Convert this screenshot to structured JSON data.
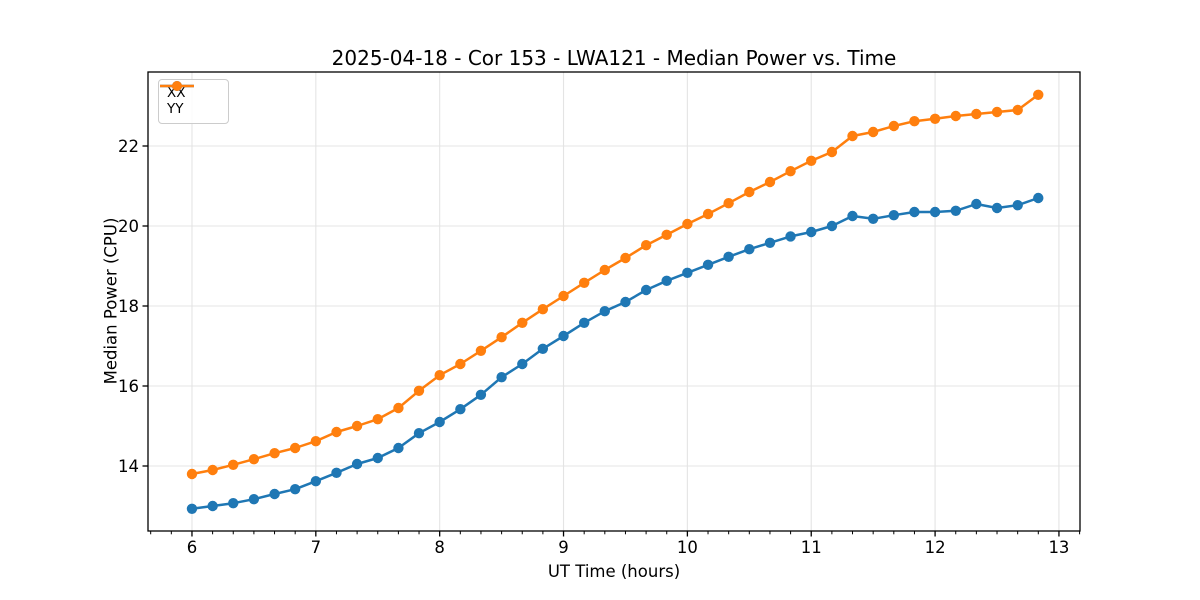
{
  "figure": {
    "background": "#ffffff",
    "spine_color": "#000000",
    "text_color": "#000000"
  },
  "chart_data": {
    "type": "line",
    "title": "2025-04-18 - Cor 153 - LWA121 - Median Power vs. Time",
    "xlabel": "UT Time (hours)",
    "ylabel": "Median Power (CPU)",
    "xlim": [
      5.645,
      13.17
    ],
    "ylim": [
      12.375,
      23.85
    ],
    "xticks": [
      6,
      7,
      8,
      9,
      10,
      11,
      12,
      13
    ],
    "yticks": [
      14,
      16,
      18,
      20,
      22
    ],
    "x_minor_step": 0.166667,
    "grid": true,
    "grid_color": "#e4e4e4",
    "legend_position": "upper left",
    "marker": "o",
    "x": [
      6.0,
      6.167,
      6.333,
      6.5,
      6.667,
      6.833,
      7.0,
      7.167,
      7.333,
      7.5,
      7.667,
      7.833,
      8.0,
      8.167,
      8.333,
      8.5,
      8.667,
      8.833,
      9.0,
      9.167,
      9.333,
      9.5,
      9.667,
      9.833,
      10.0,
      10.167,
      10.333,
      10.5,
      10.667,
      10.833,
      11.0,
      11.167,
      11.333,
      11.5,
      11.667,
      11.833,
      12.0,
      12.167,
      12.333,
      12.5,
      12.667,
      12.833
    ],
    "series": [
      {
        "name": "XX",
        "color": "#1f77b4",
        "values": [
          12.93,
          13.0,
          13.07,
          13.17,
          13.3,
          13.42,
          13.62,
          13.83,
          14.05,
          14.2,
          14.45,
          14.82,
          15.1,
          15.42,
          15.78,
          16.22,
          16.55,
          16.93,
          17.25,
          17.58,
          17.87,
          18.1,
          18.4,
          18.63,
          18.83,
          19.03,
          19.23,
          19.42,
          19.58,
          19.74,
          19.85,
          20.0,
          20.25,
          20.18,
          20.27,
          20.35,
          20.35,
          20.38,
          20.55,
          20.45,
          20.52,
          20.7
        ]
      },
      {
        "name": "YY",
        "color": "#ff7f0e",
        "values": [
          13.8,
          13.9,
          14.03,
          14.17,
          14.32,
          14.45,
          14.62,
          14.85,
          15.0,
          15.17,
          15.45,
          15.88,
          16.27,
          16.55,
          16.88,
          17.22,
          17.58,
          17.92,
          18.25,
          18.58,
          18.9,
          19.2,
          19.52,
          19.78,
          20.05,
          20.3,
          20.57,
          20.85,
          21.1,
          21.37,
          21.63,
          21.85,
          22.25,
          22.35,
          22.5,
          22.62,
          22.68,
          22.75,
          22.8,
          22.85,
          22.9,
          23.28
        ]
      }
    ]
  }
}
